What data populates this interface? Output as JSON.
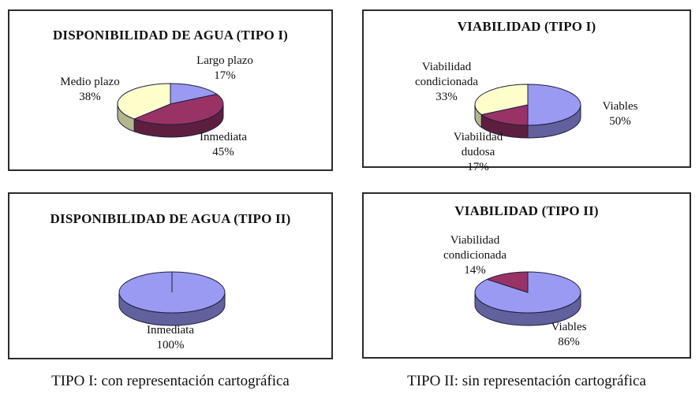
{
  "page": {
    "captions": {
      "tipo1": "TIPO I: con representación cartográfica",
      "tipo2": "TIPO II: sin representación cartográfica"
    }
  },
  "chart_data": [
    {
      "type": "pie",
      "style": "3d",
      "title": "DISPONIBILIDAD DE AGUA (TIPO I)",
      "legend": "none",
      "labels": "outside",
      "start_angle_deg": 0,
      "direction": "clockwise",
      "slices": [
        {
          "label": "Largo plazo",
          "value": 17,
          "pct_label": "17%",
          "color": "#9A9AF2",
          "side_color": "#61619E"
        },
        {
          "label": "Inmediata",
          "value": 45,
          "pct_label": "45%",
          "color": "#993366",
          "side_color": "#5E1F3F"
        },
        {
          "label": "Medio plazo",
          "value": 38,
          "pct_label": "38%",
          "color": "#FFFFCC",
          "side_color": "#B5B58E"
        }
      ]
    },
    {
      "type": "pie",
      "style": "3d",
      "title": "VIABILIDAD (TIPO I)",
      "legend": "none",
      "labels": "outside",
      "start_angle_deg": 0,
      "direction": "clockwise",
      "slices": [
        {
          "label": "Viables",
          "value": 50,
          "pct_label": "50%",
          "color": "#9A9AF2",
          "side_color": "#61619E"
        },
        {
          "label": "Viabilidad dudosa",
          "value": 17,
          "pct_label": "17%",
          "color": "#993366",
          "side_color": "#5E1F3F"
        },
        {
          "label": "Viabilidad condicionada",
          "value": 33,
          "pct_label": "33%",
          "color": "#FFFFCC",
          "side_color": "#B5B58E"
        }
      ]
    },
    {
      "type": "pie",
      "style": "3d",
      "title": "DISPONIBILIDAD DE AGUA (TIPO II)",
      "legend": "none",
      "labels": "outside",
      "start_angle_deg": 0,
      "direction": "clockwise",
      "slices": [
        {
          "label": "Inmediata",
          "value": 100,
          "pct_label": "100%",
          "color": "#9A9AF2",
          "side_color": "#61619E"
        }
      ]
    },
    {
      "type": "pie",
      "style": "3d",
      "title": "VIABILIDAD (TIPO II)",
      "legend": "none",
      "labels": "outside",
      "start_angle_deg": 0,
      "direction": "clockwise",
      "slices": [
        {
          "label": "Viables",
          "value": 86,
          "pct_label": "86%",
          "color": "#9A9AF2",
          "side_color": "#61619E"
        },
        {
          "label": "Viabilidad condicionada",
          "value": 14,
          "pct_label": "14%",
          "color": "#993366",
          "side_color": "#5E1F3F"
        }
      ]
    }
  ]
}
